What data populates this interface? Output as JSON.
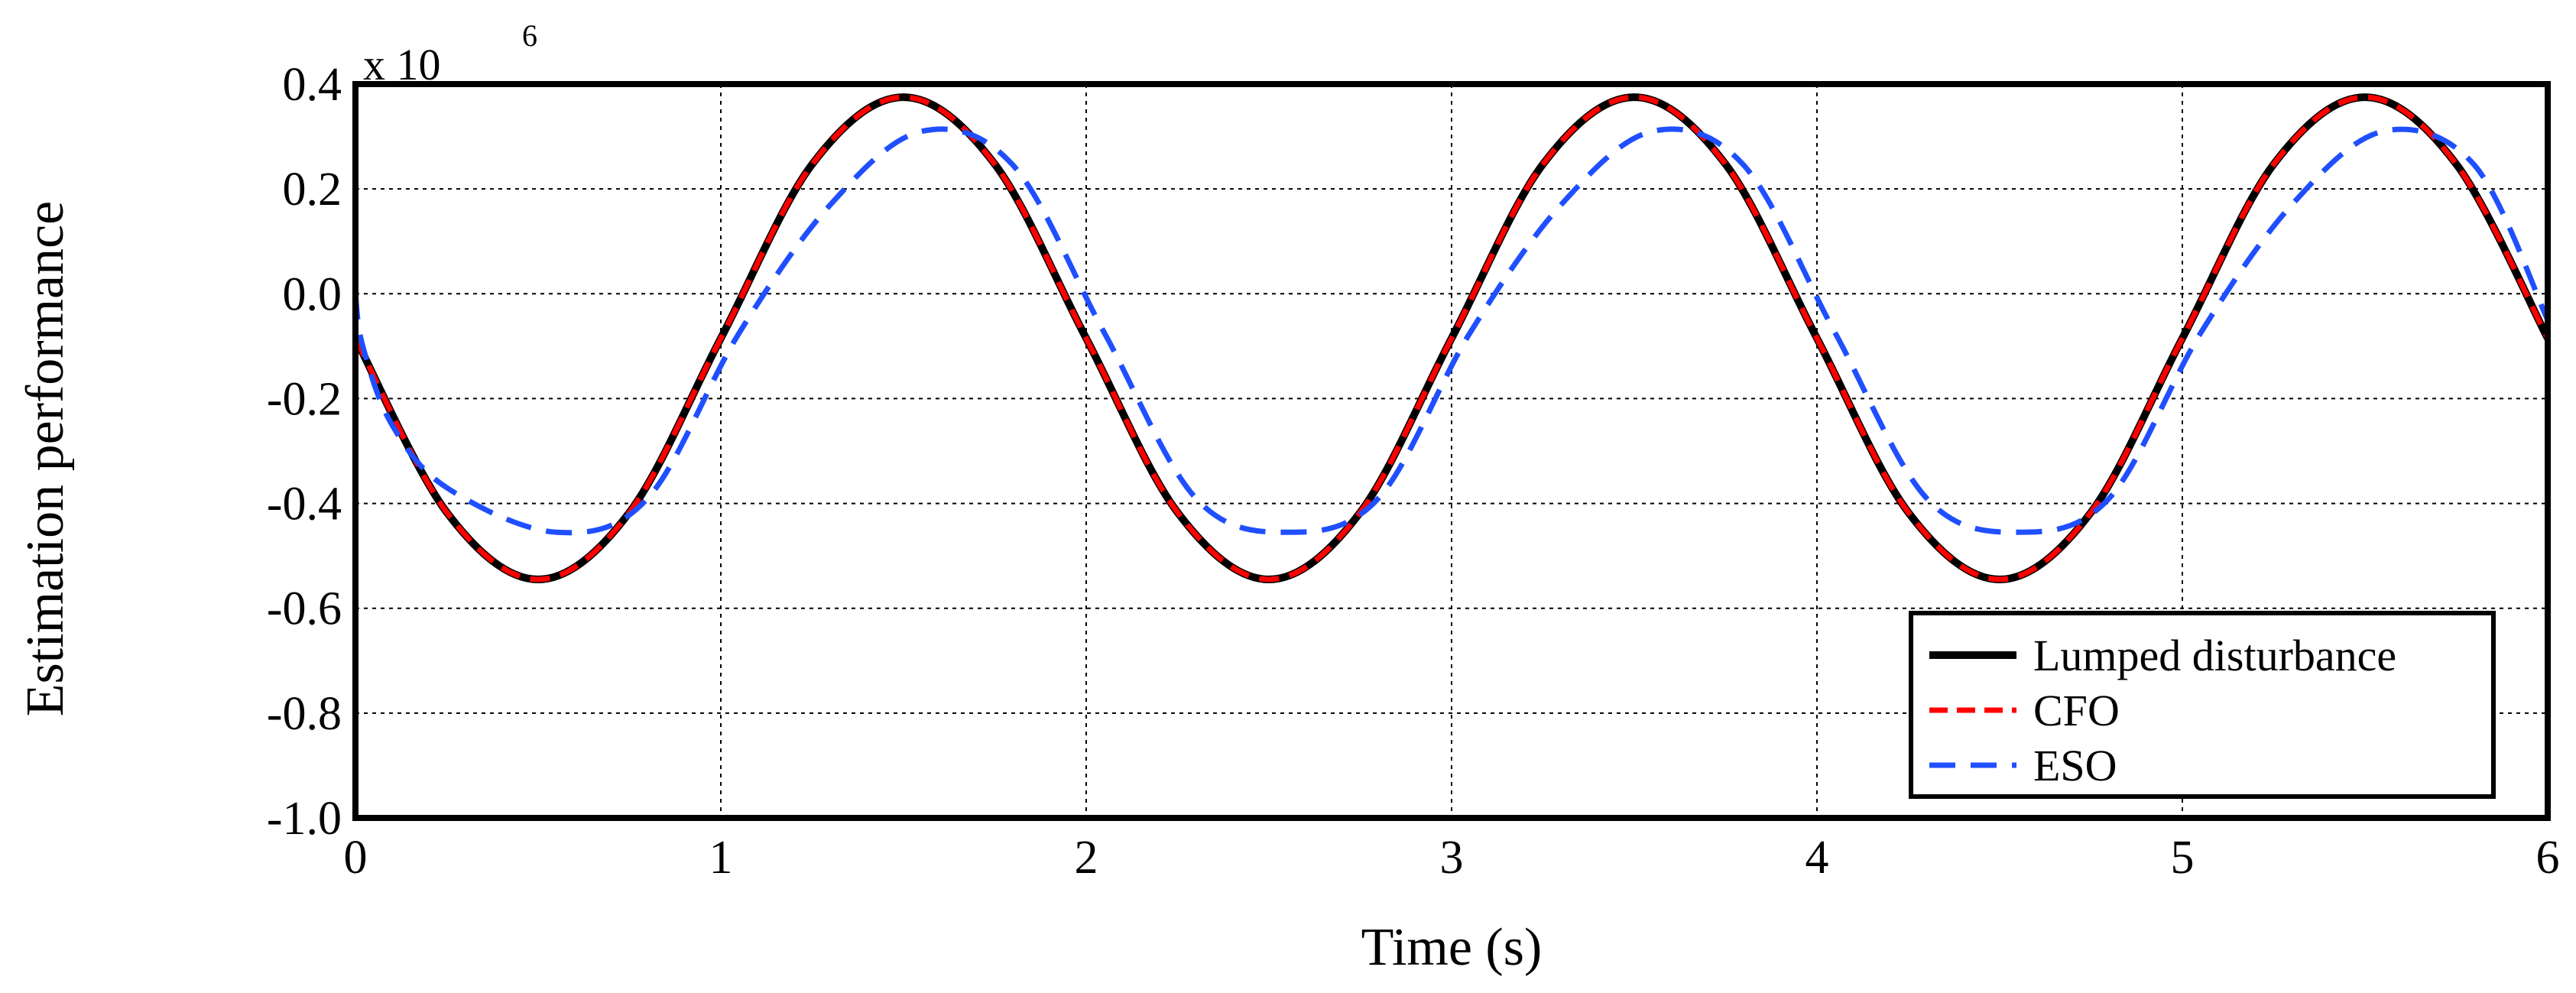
{
  "chart_data": {
    "type": "line",
    "xlabel": "Time (s)",
    "ylabel": "Estimation performance",
    "y_multiplier_label": "x 10",
    "y_multiplier_exponent": "6",
    "xlim": [
      0,
      6
    ],
    "ylim": [
      -1.0,
      0.4
    ],
    "x_ticks": [
      0,
      1,
      2,
      3,
      4,
      5,
      6
    ],
    "x_tick_labels": [
      "0",
      "1",
      "2",
      "3",
      "4",
      "5",
      "6"
    ],
    "y_ticks": [
      -1.0,
      -0.8,
      -0.6,
      -0.4,
      -0.2,
      0.0,
      0.2,
      0.4
    ],
    "y_tick_labels": [
      "-1.0",
      "-0.8",
      "-0.6",
      "-0.4",
      "-0.2",
      "0.0",
      "0.2",
      "0.4"
    ],
    "grid": true,
    "legend_position": "bottom-right",
    "series": [
      {
        "name": "Lumped disturbance",
        "color": "#000000",
        "style": "solid",
        "x": [
          0,
          0.25,
          0.5,
          0.75,
          1.0,
          1.25,
          1.5,
          1.75,
          2.0,
          2.25,
          2.5,
          2.75,
          3.0,
          3.25,
          3.5,
          3.75,
          4.0,
          4.25,
          4.5,
          4.75,
          5.0,
          5.25,
          5.5,
          5.75,
          6.0
        ],
        "y": [
          -0.085,
          -0.417,
          -0.545,
          -0.417,
          -0.085,
          0.247,
          0.375,
          0.247,
          -0.085,
          -0.417,
          -0.545,
          -0.417,
          -0.085,
          0.247,
          0.375,
          0.247,
          -0.085,
          -0.417,
          -0.545,
          -0.417,
          -0.085,
          0.247,
          0.375,
          0.247,
          -0.085
        ]
      },
      {
        "name": "CFO",
        "color": "#ff0000",
        "style": "dashed",
        "x": [
          0,
          0.25,
          0.5,
          0.75,
          1.0,
          1.25,
          1.5,
          1.75,
          2.0,
          2.25,
          2.5,
          2.75,
          3.0,
          3.25,
          3.5,
          3.75,
          4.0,
          4.25,
          4.5,
          4.75,
          5.0,
          5.25,
          5.5,
          5.75,
          6.0
        ],
        "y": [
          -0.085,
          -0.417,
          -0.545,
          -0.417,
          -0.085,
          0.247,
          0.375,
          0.247,
          -0.085,
          -0.417,
          -0.545,
          -0.417,
          -0.085,
          0.247,
          0.375,
          0.247,
          -0.085,
          -0.417,
          -0.545,
          -0.417,
          -0.085,
          0.247,
          0.375,
          0.247,
          -0.085
        ]
      },
      {
        "name": "ESO",
        "color": "#1f4fff",
        "style": "dashed",
        "x": [
          0,
          0.02,
          0.1,
          0.25,
          0.55,
          0.8,
          1.05,
          1.3,
          1.55,
          1.8,
          2.05,
          2.3,
          2.55,
          2.8,
          3.05,
          3.3,
          3.55,
          3.8,
          4.05,
          4.3,
          4.55,
          4.8,
          5.05,
          5.3,
          5.55,
          5.8,
          6.0
        ],
        "y": [
          0.0,
          -0.1,
          -0.25,
          -0.37,
          -0.455,
          -0.39,
          -0.075,
          0.17,
          0.31,
          0.245,
          -0.075,
          -0.39,
          -0.455,
          -0.39,
          -0.075,
          0.17,
          0.31,
          0.245,
          -0.075,
          -0.39,
          -0.455,
          -0.39,
          -0.075,
          0.17,
          0.31,
          0.245,
          -0.05
        ]
      }
    ]
  }
}
